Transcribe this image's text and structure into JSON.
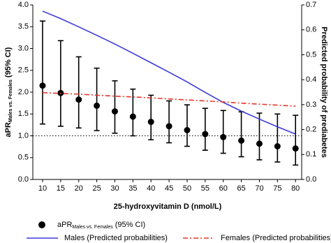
{
  "chart_data": {
    "type": "line",
    "xlabel": "25-hydroxyvitamin D (nmol/L)",
    "ylabel": {
      "main": "aPR",
      "subscript": "Males vs. Females",
      "suffix": "(95% CI)"
    },
    "y2label": "Predicted probability of prediabetes",
    "x": [
      10,
      15,
      20,
      25,
      30,
      35,
      40,
      45,
      50,
      55,
      60,
      65,
      70,
      75,
      80
    ],
    "xlim": [
      7.3,
      81.7
    ],
    "xticks": [
      10,
      15,
      20,
      25,
      30,
      35,
      40,
      45,
      50,
      55,
      60,
      65,
      70,
      75,
      80
    ],
    "ylim": [
      0,
      4
    ],
    "yticks": [
      {
        "value": 0,
        "label": "0.0"
      },
      {
        "value": 0.5,
        "label": "0.5"
      },
      {
        "value": 1,
        "label": "1.0"
      },
      {
        "value": 1.5,
        "label": "1.5"
      },
      {
        "value": 2,
        "label": "2.0"
      },
      {
        "value": 2.5,
        "label": "2.5"
      },
      {
        "value": 3,
        "label": "3.0"
      },
      {
        "value": 3.5,
        "label": "3.5"
      },
      {
        "value": 4,
        "label": "4.0"
      }
    ],
    "y2lim": [
      0,
      0.7
    ],
    "y2ticks": [
      {
        "value": 0,
        "label": "0.0"
      },
      0.1,
      0.2,
      0.3,
      0.4,
      0.5,
      0.6,
      0.7
    ],
    "reference_line": 1,
    "series": [
      {
        "type": "errorbar",
        "name": "aPR",
        "name_subscript": "Males vs. Females",
        "name_suffix": "(95% CI)",
        "color": "#000000",
        "values": [
          2.15,
          1.98,
          1.83,
          1.69,
          1.56,
          1.44,
          1.32,
          1.22,
          1.13,
          1.04,
          0.97,
          0.89,
          0.82,
          0.76,
          0.71
        ],
        "lower": [
          1.27,
          1.22,
          1.18,
          1.12,
          1.06,
          1.0,
          0.91,
          0.84,
          0.76,
          0.67,
          0.6,
          0.52,
          0.45,
          0.4,
          0.33
        ],
        "upper": [
          3.63,
          3.18,
          2.81,
          2.55,
          2.26,
          2.07,
          1.93,
          1.8,
          1.71,
          1.63,
          1.58,
          1.55,
          1.52,
          1.5,
          1.47
        ]
      },
      {
        "type": "line",
        "name": "Males (Predicted probabilities)",
        "color": "#3b3bd9",
        "axis": "y2",
        "dash": "solid",
        "values": [
          0.675,
          0.645,
          0.612,
          0.578,
          0.543,
          0.506,
          0.468,
          0.43,
          0.391,
          0.349,
          0.309,
          0.274,
          0.242,
          0.211,
          0.182
        ]
      },
      {
        "type": "line",
        "name": "Females (Predicted probabilities)",
        "color": "#e8352a",
        "axis": "y2",
        "dash": "dashdot",
        "values": [
          0.348,
          0.345,
          0.342,
          0.338,
          0.334,
          0.331,
          0.327,
          0.323,
          0.319,
          0.315,
          0.311,
          0.306,
          0.302,
          0.298,
          0.294
        ]
      }
    ]
  }
}
